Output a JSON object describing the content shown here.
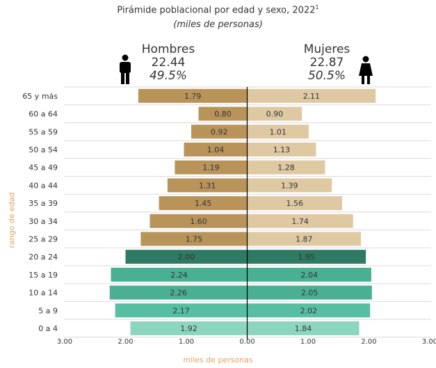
{
  "title": "Pirámide poblacional por edad y sexo, 2022",
  "title_superscript": "1",
  "subtitle": "(miles de personas)",
  "men": {
    "label": "Hombres",
    "total": "22.44",
    "pct": "49.5%",
    "icon": "man-icon"
  },
  "women": {
    "label": "Mujeres",
    "total": "22.87",
    "pct": "50.5%",
    "icon": "woman-icon"
  },
  "chart_data": {
    "type": "bar",
    "orientation": "horizontal-pyramid",
    "ylabel": "rango de edad",
    "xlabel": "miles de personas",
    "xlim": [
      -3,
      3
    ],
    "x_ticks": [
      "3.00",
      "2.00",
      "1.00",
      "0.00",
      "1.00",
      "2.00",
      "3.00"
    ],
    "grid": true,
    "categories": [
      "65 y más",
      "60 a 64",
      "55 a 59",
      "50 a 54",
      "45 a 49",
      "40 a 44",
      "35 a 39",
      "30 a 34",
      "25 a 29",
      "20 a 24",
      "15 a 19",
      "10 a 14",
      "5 a 9",
      "0 a 4"
    ],
    "series": [
      {
        "name": "Hombres",
        "values": [
          1.79,
          0.8,
          0.92,
          1.04,
          1.19,
          1.31,
          1.45,
          1.6,
          1.75,
          2.0,
          2.24,
          2.26,
          2.17,
          1.92
        ],
        "labels": [
          "1.79",
          "0.80",
          "0.92",
          "1.04",
          "1.19",
          "1.31",
          "1.45",
          "1.60",
          "1.75",
          "2.00",
          "2.24",
          "2.26",
          "2.17",
          "1.92"
        ]
      },
      {
        "name": "Mujeres",
        "values": [
          2.11,
          0.9,
          1.01,
          1.13,
          1.28,
          1.39,
          1.56,
          1.74,
          1.87,
          1.95,
          2.04,
          2.05,
          2.02,
          1.84
        ],
        "labels": [
          "2.11",
          "0.90",
          "1.01",
          "1.13",
          "1.28",
          "1.39",
          "1.56",
          "1.74",
          "1.87",
          "1.95",
          "2.04",
          "2.05",
          "2.02",
          "1.84"
        ]
      }
    ],
    "bar_colors": {
      "men_adult": "#b9945a",
      "women_adult": "#dec9a3",
      "young_adult": "#2e7a64",
      "youth": "#49b094",
      "child": "#56bea3",
      "infant": "#8cd6bf"
    }
  }
}
